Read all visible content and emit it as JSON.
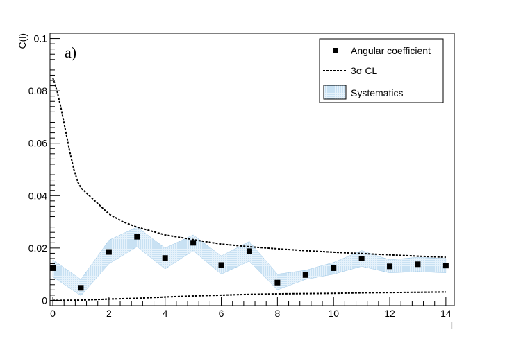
{
  "chart_data": {
    "type": "scatter",
    "panel_label": "a)",
    "xlabel": "l",
    "ylabel": "C(l)",
    "xlim": [
      -0.1,
      14.3
    ],
    "ylim": [
      -0.002,
      0.102
    ],
    "x_ticks": [
      0,
      2,
      4,
      6,
      8,
      10,
      12,
      14
    ],
    "y_ticks": [
      0,
      0.02,
      0.04,
      0.06,
      0.08,
      0.1
    ],
    "y_tick_labels": [
      "0",
      "0.02",
      "0.04",
      "0.06",
      "0.08",
      "0.1"
    ],
    "x_tick_labels": [
      "0",
      "2",
      "4",
      "6",
      "8",
      "10",
      "12",
      "14"
    ],
    "grid": false,
    "legend_position": "top-right",
    "legend": {
      "points": "Angular coefficient",
      "upper_line": "3σ CL",
      "band": "Systematics"
    },
    "points": {
      "x": [
        0,
        1,
        2,
        3,
        4,
        5,
        6,
        7,
        8,
        9,
        10,
        11,
        12,
        13,
        14
      ],
      "y": [
        0.0123,
        0.0048,
        0.0185,
        0.0243,
        0.0162,
        0.022,
        0.0135,
        0.0188,
        0.0068,
        0.0097,
        0.0123,
        0.016,
        0.013,
        0.0138,
        0.0133
      ]
    },
    "systematics_band": {
      "x": [
        0,
        1,
        2,
        3,
        4,
        5,
        6,
        7,
        8,
        9,
        10,
        11,
        12,
        13,
        14
      ],
      "low": [
        0.009,
        0.0018,
        0.014,
        0.0205,
        0.012,
        0.019,
        0.01,
        0.015,
        0.004,
        0.008,
        0.01,
        0.013,
        0.0105,
        0.011,
        0.0105
      ],
      "high": [
        0.0155,
        0.008,
        0.023,
        0.028,
        0.02,
        0.025,
        0.017,
        0.0225,
        0.01,
        0.0115,
        0.0145,
        0.019,
        0.0155,
        0.0165,
        0.016
      ]
    },
    "cl_upper": {
      "x": [
        0,
        0.15,
        0.3,
        0.45,
        0.6,
        0.75,
        0.9,
        1,
        1.5,
        2,
        2.5,
        3,
        3.5,
        4,
        5,
        6,
        7,
        8,
        9,
        10,
        11,
        12,
        13,
        14
      ],
      "y": [
        0.085,
        0.08,
        0.073,
        0.065,
        0.057,
        0.05,
        0.045,
        0.043,
        0.038,
        0.033,
        0.03,
        0.028,
        0.0265,
        0.025,
        0.0232,
        0.0215,
        0.0205,
        0.0197,
        0.019,
        0.0184,
        0.0179,
        0.0174,
        0.0169,
        0.0165
      ]
    },
    "cl_lower": {
      "x": [
        0,
        1,
        2,
        3,
        4,
        5,
        6,
        7,
        8,
        9,
        10,
        11,
        12,
        13,
        14
      ],
      "y": [
        0.0,
        0.0001,
        0.0005,
        0.0008,
        0.0013,
        0.0017,
        0.002,
        0.0023,
        0.0025,
        0.0026,
        0.0027,
        0.0029,
        0.003,
        0.0031,
        0.0032
      ]
    },
    "colors": {
      "band_fill": "#d8ecf8",
      "band_stroke": "#9dc7e6",
      "line": "#000000",
      "marker": "#000000"
    }
  }
}
